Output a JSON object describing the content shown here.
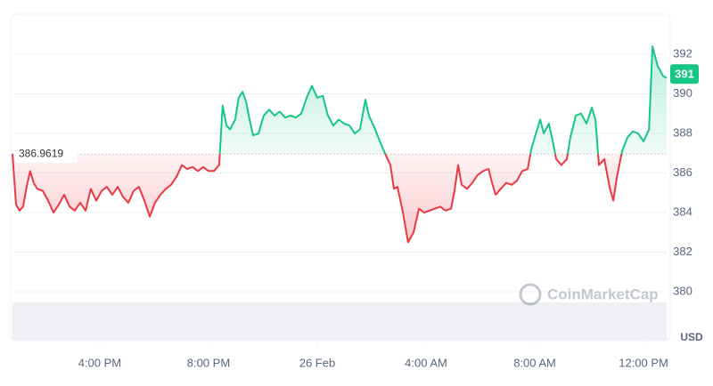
{
  "chart_data": {
    "type": "line",
    "x": [
      12.79,
      12.92,
      13.05,
      13.18,
      13.31,
      13.44,
      13.57,
      13.7,
      13.9,
      14.1,
      14.3,
      14.49,
      14.69,
      14.89,
      15.08,
      15.28,
      15.48,
      15.67,
      15.87,
      16.07,
      16.26,
      16.46,
      16.66,
      16.85,
      17.05,
      17.25,
      17.44,
      17.64,
      17.84,
      18.03,
      18.23,
      18.43,
      18.62,
      18.82,
      19.02,
      19.21,
      19.41,
      19.61,
      19.8,
      20.0,
      20.2,
      20.39,
      20.52,
      20.66,
      20.79,
      20.98,
      21.11,
      21.25,
      21.38,
      21.51,
      21.64,
      21.84,
      22.03,
      22.23,
      22.43,
      22.62,
      22.82,
      23.02,
      23.21,
      23.41,
      23.61,
      23.8,
      24.0,
      24.2,
      24.39,
      24.59,
      24.79,
      24.98,
      25.18,
      25.38,
      25.57,
      25.77,
      25.9,
      26.1,
      26.3,
      26.49,
      26.69,
      26.82,
      26.95,
      27.15,
      27.34,
      27.54,
      27.74,
      27.93,
      28.13,
      28.33,
      28.52,
      28.72,
      28.92,
      29.05,
      29.18,
      29.31,
      29.51,
      29.7,
      29.9,
      30.1,
      30.3,
      30.43,
      30.56,
      30.75,
      30.95,
      31.15,
      31.34,
      31.54,
      31.74,
      31.87,
      32.0,
      32.2,
      32.33,
      32.52,
      32.66,
      32.79,
      32.98,
      33.18,
      33.31,
      33.51,
      33.7,
      33.9,
      34.1,
      34.23,
      34.36,
      34.56,
      34.75,
      34.89,
      35.02,
      35.21,
      35.41,
      35.61,
      35.8,
      36.0,
      36.2,
      36.33,
      36.52,
      36.72,
      36.85
    ],
    "values": [
      386.97,
      384.4,
      384.1,
      384.3,
      385.3,
      386.1,
      385.5,
      385.2,
      385.1,
      384.6,
      384.0,
      384.4,
      384.9,
      384.3,
      384.1,
      384.5,
      384.1,
      385.2,
      384.6,
      385.1,
      385.3,
      384.9,
      385.3,
      384.8,
      384.5,
      385.1,
      385.3,
      384.6,
      383.8,
      384.5,
      384.9,
      385.2,
      385.4,
      385.8,
      386.4,
      386.2,
      386.3,
      386.1,
      386.3,
      386.1,
      386.1,
      386.4,
      389.4,
      388.4,
      388.2,
      388.7,
      389.8,
      390.1,
      389.6,
      388.7,
      387.9,
      388.0,
      388.9,
      389.2,
      388.9,
      389.1,
      388.8,
      388.9,
      388.8,
      389.0,
      389.8,
      390.4,
      389.8,
      389.9,
      388.9,
      388.4,
      388.7,
      388.5,
      388.4,
      388.0,
      388.2,
      389.7,
      388.9,
      388.3,
      387.6,
      387.0,
      386.4,
      385.2,
      385.3,
      384.0,
      382.5,
      383.0,
      384.2,
      384.0,
      384.1,
      384.2,
      384.3,
      384.1,
      384.2,
      385.1,
      386.4,
      385.4,
      385.2,
      385.5,
      385.9,
      386.1,
      386.2,
      385.5,
      384.9,
      385.2,
      385.5,
      385.4,
      385.6,
      386.1,
      386.2,
      387.2,
      387.8,
      388.7,
      388.0,
      388.5,
      387.6,
      386.7,
      386.4,
      386.7,
      387.8,
      388.9,
      389.0,
      388.5,
      389.3,
      388.7,
      386.4,
      386.7,
      385.3,
      384.6,
      385.8,
      387.1,
      387.8,
      388.1,
      388.0,
      387.6,
      388.2,
      392.4,
      391.4,
      390.9,
      390.8
    ],
    "xlim": [
      12.79,
      36.85
    ],
    "xticks": [
      {
        "value": 16,
        "label": "4:00 PM"
      },
      {
        "value": 20,
        "label": "8:00 PM"
      },
      {
        "value": 24,
        "label": "26 Feb"
      },
      {
        "value": 28,
        "label": "4:00 AM"
      },
      {
        "value": 32,
        "label": "8:00 AM"
      },
      {
        "value": 36,
        "label": "12:00 PM"
      }
    ],
    "ylim": [
      377.53,
      393.93
    ],
    "yticks": [
      380,
      382,
      384,
      386,
      388,
      390,
      392
    ],
    "baseline": 386.9619,
    "last_value": 391,
    "y_unit": "USD",
    "watermark": "CoinMarketCap",
    "up_color": "#16c784",
    "down_color": "#ea3943",
    "grid": true
  }
}
